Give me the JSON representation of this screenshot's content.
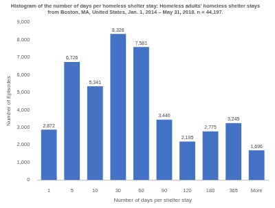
{
  "chart_data": {
    "type": "bar",
    "title": [
      "Histogram of the number of days per homeless shelter stay: Homeless adults' homeless shelter stays",
      "from Boston, MA, United States, Jan. 1, 2014 – May 31, 2018. n = 44,197."
    ],
    "x_label": "Number of days per shelter stay",
    "y_label": "Number of Episodes",
    "categories": [
      "1",
      "5",
      "10",
      "30",
      "60",
      "90",
      "120",
      "180",
      "365",
      "More"
    ],
    "values": [
      2872,
      6726,
      5341,
      8326,
      7581,
      3440,
      2195,
      2775,
      3245,
      1696
    ],
    "value_labels": [
      "2,872",
      "6,726",
      "5,341",
      "8,326",
      "7,581",
      "3,440",
      "2,195",
      "2,775",
      "3,245",
      "1,696"
    ],
    "data_labels": true,
    "color": "#4472c4",
    "ylim": [
      0,
      9000
    ],
    "yticks": [
      0,
      {
        "value": 1000,
        "label": "1,000"
      },
      {
        "value": 2000,
        "label": "2,000"
      },
      {
        "value": 3000,
        "label": "3,000"
      },
      {
        "value": 4000,
        "label": "4,000"
      },
      {
        "value": 5000,
        "label": "5,000"
      },
      {
        "value": 6000,
        "label": "6,000"
      },
      {
        "value": 7000,
        "label": "7,000"
      },
      {
        "value": 8000,
        "label": "8,000"
      },
      {
        "value": 9000,
        "label": "9,000"
      }
    ],
    "grid": false
  }
}
